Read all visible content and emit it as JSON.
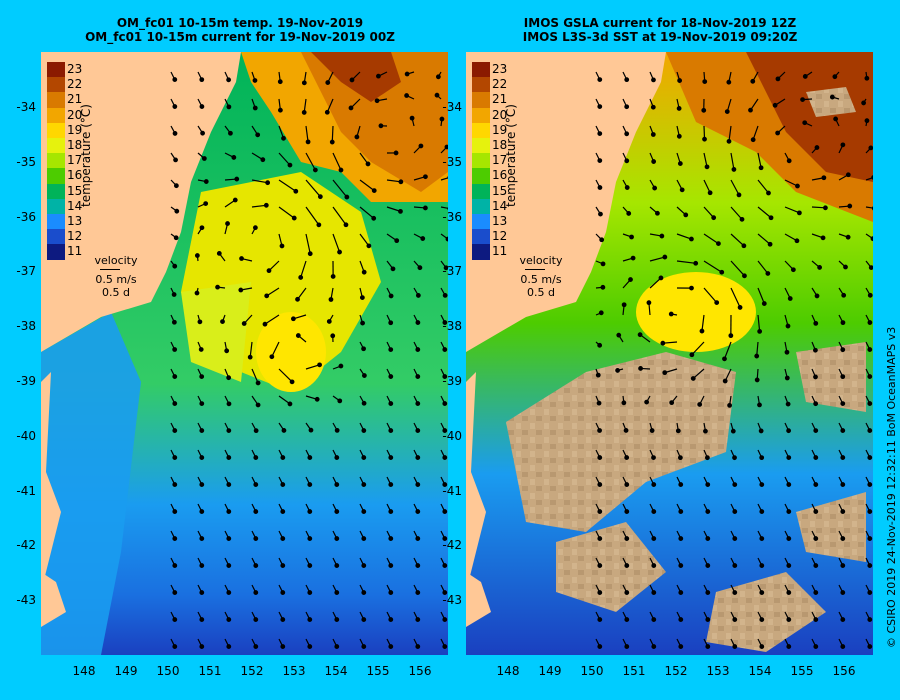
{
  "left_panel": {
    "title_line1": "OM_fc01 10-15m temp. 19-Nov-2019",
    "title_line2": "OM_fc01 10-15m current for 19-Nov-2019 00Z"
  },
  "right_panel": {
    "title_line1": "IMOS GSLA current for 18-Nov-2019 12Z",
    "title_line2": "IMOS L3S-3d SST at 19-Nov-2019 09:20Z"
  },
  "colorbar": {
    "label": "temperature (°C)",
    "ticks": [
      "23",
      "22",
      "21",
      "20",
      "19",
      "18",
      "17",
      "16",
      "15",
      "14",
      "13",
      "12",
      "11"
    ],
    "colors": [
      "#8b1a00",
      "#b34700",
      "#d97a00",
      "#f2a600",
      "#ffd700",
      "#e6f20d",
      "#a6e600",
      "#4dcc00",
      "#00b359",
      "#00b3a6",
      "#1a8cff",
      "#1a4dcc",
      "#0d1a80"
    ]
  },
  "velocity_key": {
    "title": "velocity",
    "speed": "0.5 m/s",
    "duration": "0.5 d"
  },
  "axes": {
    "lat_ticks": [
      "-34",
      "-35",
      "-36",
      "-37",
      "-38",
      "-39",
      "-40",
      "-41",
      "-42",
      "-43"
    ],
    "lon_ticks": [
      "148",
      "149",
      "150",
      "151",
      "152",
      "153",
      "154",
      "155",
      "156"
    ]
  },
  "credit": "© CSIRO 2019   24-Nov-2019 12:32:11 BoM OceanMAPS v3",
  "colors": {
    "background": "#00ccff",
    "land": "#ffc896",
    "cloud": "#c8a87f"
  }
}
